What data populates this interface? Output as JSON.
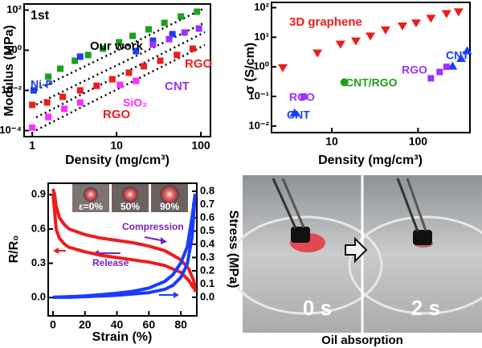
{
  "chart_data": [
    {
      "type": "scatter",
      "xscale": "log",
      "yscale": "log",
      "x_label": "Density (mg/cm³)",
      "y_label": "Modulus (MPa)",
      "xlim": [
        0.8,
        130
      ],
      "ylim": [
        5e-05,
        200
      ],
      "xticks": [
        1,
        10,
        100
      ],
      "yticks": [
        {
          "value": 0.0001,
          "label": "10⁻⁴"
        },
        {
          "value": 0.01,
          "label": "10⁻²"
        },
        {
          "value": 1,
          "label": "10⁰"
        },
        {
          "value": 100,
          "label": "10²"
        }
      ],
      "series": [
        {
          "color": "#1f9e1f",
          "marker": "square",
          "x": [
            1.55,
            2.15,
            3.2,
            4.6,
            6.9,
            10.7,
            15.5,
            24,
            37,
            58,
            90
          ],
          "values": [
            0.048,
            0.12,
            0.3,
            0.58,
            1.2,
            2.5,
            5.2,
            11,
            23,
            48,
            83
          ]
        },
        {
          "color": "#1a3cff",
          "marker": "square",
          "x": [
            1.04,
            3.7,
            17,
            27,
            46
          ],
          "values": [
            0.01,
            0.48,
            0.9,
            3,
            6.3
          ]
        },
        {
          "color": "#ee1c1c",
          "marker": "square",
          "x": [
            1.0,
            1.5,
            2.3,
            3.7,
            5.8,
            8.9,
            14,
            21,
            33,
            52,
            80
          ],
          "values": [
            0.0019,
            0.0025,
            0.0048,
            0.01,
            0.017,
            0.036,
            0.076,
            0.16,
            0.3,
            0.58,
            1.2
          ]
        },
        {
          "color": "#ff2cff",
          "marker": "square",
          "x": [
            1.0,
            1.55,
            2.4,
            3.7,
            11,
            17
          ],
          "values": [
            0.00014,
            0.00048,
            0.0012,
            0.0025,
            0.019,
            0.03
          ]
        },
        {
          "color": "#9933ff",
          "marker": "square",
          "x": [
            27,
            42,
            64,
            95
          ],
          "values": [
            1.9,
            3.6,
            7.6,
            12
          ]
        }
      ],
      "annotations": [
        {
          "text": "1st",
          "color": "#000000"
        },
        {
          "text": "Our work",
          "color": "#000000"
        },
        {
          "text": "Ni-P",
          "color": "#1a3cff"
        },
        {
          "text": "RGO",
          "color": "#ee1c1c"
        },
        {
          "text": "SiO₂",
          "color": "#ff2cff"
        },
        {
          "text": "CNT",
          "color": "#9933ff"
        },
        {
          "text": "RGO",
          "color": "#ee1c1c"
        }
      ]
    },
    {
      "type": "scatter",
      "xscale": "log",
      "yscale": "log",
      "x_label": "Density (mg/cm³)",
      "y_label": "σ (S/cm)",
      "xlim": [
        2,
        400
      ],
      "ylim": [
        0.006,
        150
      ],
      "xticks": [
        10,
        100
      ],
      "yticks": [
        {
          "value": 0.01,
          "label": "10⁻²"
        },
        {
          "value": 0.1,
          "label": "10⁻¹"
        },
        {
          "value": 1,
          "label": "10⁰"
        },
        {
          "value": 10,
          "label": "10¹"
        },
        {
          "value": 100,
          "label": "10²"
        }
      ],
      "series": [
        {
          "color": "#ee1c1c",
          "marker": "triangle-down",
          "x": [
            2.7,
            6.8,
            12.6,
            19,
            28,
            42,
            66,
            95,
            141,
            214,
            295
          ],
          "values": [
            0.9,
            2.8,
            5.6,
            7.2,
            10.5,
            17,
            23,
            29,
            42,
            60,
            69
          ]
        },
        {
          "color": "#1a3cff",
          "marker": "triangle",
          "x": [
            3.7,
            251,
            316,
            372
          ],
          "values": [
            0.029,
            1.1,
            2,
            3.6
          ]
        },
        {
          "color": "#9933ff",
          "marker": "square",
          "x": [
            4.7,
            141,
            178,
            214
          ],
          "values": [
            0.1,
            0.41,
            0.67,
            1.0
          ]
        },
        {
          "color": "#1f9e1f",
          "marker": "circle",
          "x": [
            14
          ],
          "values": [
            0.3
          ]
        }
      ],
      "annotations": [
        {
          "text": "3D graphene",
          "color": "#ee1c1c"
        },
        {
          "text": "CNT",
          "color": "#1a3cff"
        },
        {
          "text": "RGO",
          "color": "#9933ff"
        },
        {
          "text": "CNT/RGO",
          "color": "#1f9e1f"
        },
        {
          "text": "RGO",
          "color": "#9933ff"
        },
        {
          "text": "CNT",
          "color": "#1a3cff"
        }
      ]
    },
    {
      "type": "line",
      "x_label": "Strain (%)",
      "y_label": "R/R₀",
      "y2_label": "Stress (MPa)",
      "xlim": [
        -3,
        90
      ],
      "ylim": [
        -0.16,
        1.0
      ],
      "y2lim": [
        -0.14,
        0.86
      ],
      "xticks": [
        0,
        20,
        40,
        60,
        80
      ],
      "yticks": [
        {
          "value": 0,
          "label": "0.0"
        },
        0.3,
        0.6,
        0.9
      ],
      "y2ticks": [
        {
          "value": 0,
          "label": "0.0"
        },
        0.1,
        0.2,
        0.3,
        0.4,
        0.5,
        0.6,
        0.7,
        0.8
      ],
      "series": [
        {
          "color": "#ee1c1c",
          "x": [
            0,
            1,
            2,
            4,
            7,
            10,
            20,
            30,
            40,
            50,
            60,
            70,
            80,
            85,
            88,
            89
          ],
          "values": [
            0.95,
            0.9,
            0.8,
            0.7,
            0.64,
            0.6,
            0.55,
            0.52,
            0.5,
            0.48,
            0.45,
            0.41,
            0.33,
            0.25,
            0.15,
            0.05
          ]
        },
        {
          "color": "#ee1c1c",
          "x": [
            0,
            1,
            2,
            4,
            7,
            10,
            20,
            30,
            40,
            50,
            60,
            70,
            80,
            85,
            88
          ],
          "values": [
            0.9,
            0.75,
            0.6,
            0.52,
            0.47,
            0.44,
            0.4,
            0.37,
            0.35,
            0.33,
            0.31,
            0.28,
            0.22,
            0.15,
            0.08
          ]
        },
        {
          "color": "#1a3cff",
          "axis": "y2",
          "x": [
            0,
            10,
            20,
            30,
            40,
            50,
            60,
            70,
            75,
            80,
            84,
            87,
            89
          ],
          "values": [
            0,
            0.005,
            0.01,
            0.02,
            0.03,
            0.045,
            0.07,
            0.12,
            0.17,
            0.26,
            0.38,
            0.6,
            0.78
          ]
        },
        {
          "color": "#1a3cff",
          "axis": "y2",
          "x": [
            0,
            10,
            20,
            30,
            40,
            50,
            60,
            70,
            75,
            80,
            84,
            87,
            89
          ],
          "values": [
            0,
            0,
            0.005,
            0.01,
            0.015,
            0.025,
            0.035,
            0.06,
            0.09,
            0.15,
            0.25,
            0.45,
            0.78
          ]
        }
      ],
      "annotations": [
        {
          "text": "Compression",
          "color": "#7a22b8"
        },
        {
          "text": "Release",
          "color": "#7a22b8"
        }
      ],
      "inset_labels": [
        "ε=0%",
        "50%",
        "90%"
      ]
    }
  ],
  "photo": {
    "labels": [
      "0 s",
      "2 s"
    ],
    "caption": "Oil absorption"
  }
}
